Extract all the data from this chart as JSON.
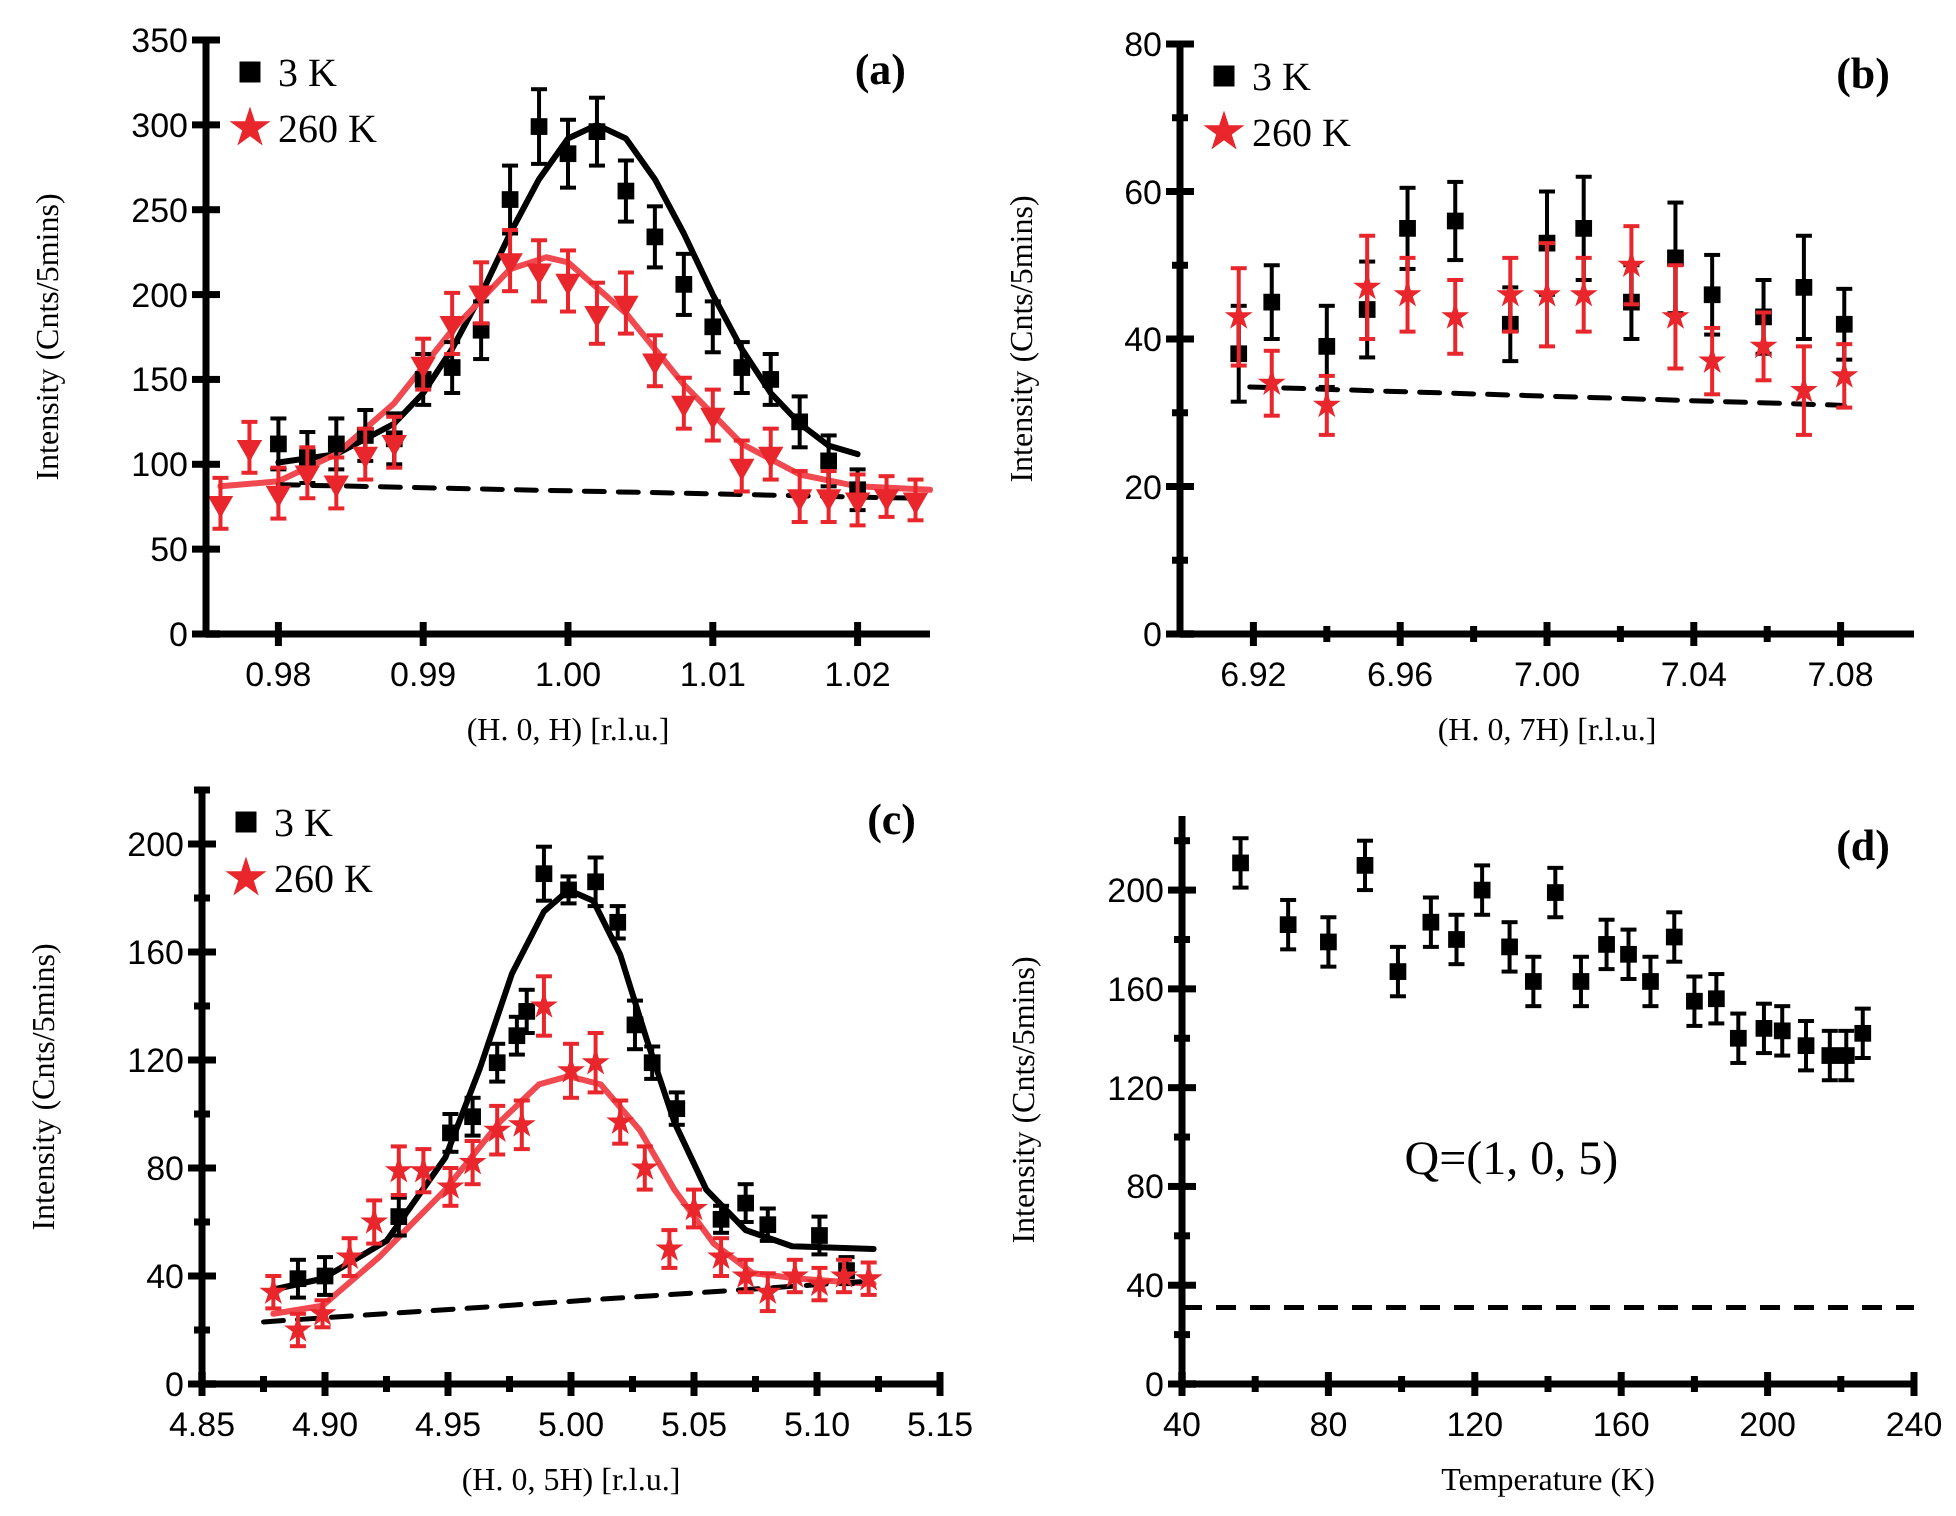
{
  "chart_data": [
    {
      "type": "scatter",
      "xlabel": "(H. 0, H) [r.l.u.]",
      "ylabel": "Intensity (Cnts/5mins)",
      "annotations": [
        "(a)"
      ],
      "legend": "top left",
      "xlim": [
        0.975,
        1.025
      ],
      "ylim": [
        0,
        350
      ],
      "xticks": [
        0.98,
        0.99,
        {
          "value": 1,
          "label": "1.00"
        },
        1.01,
        1.02
      ],
      "yticks": [
        0,
        50,
        100,
        150,
        200,
        250,
        300,
        350
      ],
      "series": [
        {
          "name": "3 K",
          "marker": "square",
          "color": "#000000",
          "x": [
            0.98,
            0.982,
            0.984,
            0.986,
            0.988,
            0.99,
            0.992,
            0.994,
            0.996,
            0.998,
            1.0,
            1.002,
            1.004,
            1.006,
            1.008,
            1.01,
            1.012,
            1.014,
            1.016,
            1.018,
            1.02
          ],
          "values": [
            112,
            104,
            112,
            117,
            115,
            150,
            157,
            179,
            256,
            299,
            283,
            296,
            261,
            234,
            206,
            181,
            157,
            150,
            125,
            102,
            85
          ],
          "errors": [
            15,
            15,
            15,
            15,
            15,
            15,
            15,
            17,
            20,
            22,
            20,
            20,
            18,
            18,
            18,
            15,
            15,
            15,
            15,
            15,
            12
          ]
        },
        {
          "name": "260 K",
          "marker": "triangle",
          "color": "#e8262b",
          "x": [
            0.976,
            0.978,
            0.98,
            0.982,
            0.984,
            0.986,
            0.988,
            0.99,
            0.992,
            0.994,
            0.996,
            0.998,
            1.0,
            1.002,
            1.004,
            1.006,
            1.008,
            1.01,
            1.012,
            1.014,
            1.016,
            1.018,
            1.02,
            1.022,
            1.024
          ],
          "values": [
            77,
            110,
            83,
            95,
            89,
            106,
            113,
            159,
            183,
            201,
            220,
            214,
            208,
            189,
            195,
            161,
            136,
            129,
            99,
            106,
            81,
            81,
            79,
            81,
            79
          ],
          "errors": [
            15,
            15,
            15,
            15,
            15,
            15,
            15,
            15,
            18,
            18,
            18,
            18,
            18,
            18,
            18,
            15,
            15,
            15,
            15,
            15,
            15,
            15,
            15,
            12,
            12
          ]
        },
        {
          "type": "line",
          "color": "#000000",
          "x": [
            0.98,
            0.984,
            0.988,
            0.99,
            0.992,
            0.994,
            0.996,
            0.998,
            1.0,
            1.002,
            1.004,
            1.006,
            1.008,
            1.01,
            1.012,
            1.014,
            1.016,
            1.018,
            1.02
          ],
          "values": [
            101,
            106,
            124,
            142,
            168,
            200,
            236,
            268,
            292,
            300,
            292,
            268,
            236,
            200,
            168,
            142,
            124,
            111,
            106
          ]
        },
        {
          "type": "line",
          "color": "#f0494f",
          "x": [
            0.976,
            0.98,
            0.984,
            0.988,
            0.992,
            0.996,
            0.9985,
            1.0,
            1.004,
            1.008,
            1.012,
            1.016,
            1.02,
            1.025
          ],
          "values": [
            87,
            90,
            106,
            136,
            179,
            215,
            222,
            219,
            189,
            147,
            112,
            94,
            87,
            85
          ]
        },
        {
          "type": "line",
          "line_style": "dashed",
          "color": "#000000",
          "x": [
            0.98,
            1.024
          ],
          "values": [
            88,
            80
          ]
        }
      ]
    },
    {
      "type": "scatter",
      "xlabel": "(H. 0, 7H) [r.l.u.]",
      "ylabel": "Intensity (Cnts/5mins)",
      "annotations": [
        "(b)"
      ],
      "legend": "top left",
      "xlim": [
        6.9,
        7.1
      ],
      "ylim": [
        0,
        80
      ],
      "xticks": [
        6.92,
        {
          "value": 6.94,
          "label": null
        },
        6.96,
        {
          "value": 6.98,
          "label": null
        },
        {
          "value": 7,
          "label": "7.00"
        },
        {
          "value": 7.02,
          "label": null
        },
        7.04,
        {
          "value": 7.06,
          "label": null
        },
        7.08
      ],
      "yticks": [
        0,
        {
          "value": 10,
          "label": null
        },
        20,
        {
          "value": 30,
          "label": null
        },
        40,
        {
          "value": 50,
          "label": null
        },
        60,
        {
          "value": 70,
          "label": null
        },
        80
      ],
      "series": [
        {
          "name": "3 K",
          "marker": "square",
          "color": "#000000",
          "x": [
            6.916,
            6.925,
            6.94,
            6.951,
            6.962,
            6.975,
            6.99,
            7.0,
            7.01,
            7.023,
            7.035,
            7.045,
            7.059,
            7.07,
            7.081
          ],
          "values": [
            38,
            45,
            39,
            44,
            55,
            56,
            42,
            53,
            55,
            45,
            51,
            46,
            43,
            47,
            42
          ],
          "errors": [
            6.5,
            5,
            5.5,
            6.5,
            5.5,
            5.3,
            5,
            7,
            7,
            5,
            7.5,
            5.4,
            5,
            7,
            4.8
          ]
        },
        {
          "name": "260 K",
          "marker": "star",
          "color": "#e8262b",
          "x": [
            6.916,
            6.925,
            6.94,
            6.951,
            6.962,
            6.975,
            6.99,
            7.0,
            7.01,
            7.023,
            7.035,
            7.045,
            7.059,
            7.07,
            7.081
          ],
          "values": [
            43,
            34,
            31,
            47,
            46,
            43,
            46,
            46,
            46,
            50,
            43,
            37,
            39,
            33,
            35
          ],
          "errors": [
            6.6,
            4.4,
            4,
            7,
            5,
            5,
            5,
            7,
            5,
            5.3,
            7,
            4.5,
            4.6,
            6,
            4.3
          ]
        },
        {
          "type": "line",
          "line_style": "dashed",
          "color": "#000000",
          "x": [
            6.919,
            7.081
          ],
          "values": [
            33.5,
            31
          ]
        }
      ]
    },
    {
      "type": "scatter",
      "xlabel": "(H. 0, 5H) [r.l.u.]",
      "ylabel": "Intensity (Cnts/5mins)",
      "annotations": [
        "(c)"
      ],
      "legend": "top left",
      "xlim": [
        4.85,
        5.15
      ],
      "ylim": [
        0,
        220
      ],
      "xticks": [
        4.85,
        {
          "value": 4.875,
          "label": null
        },
        {
          "value": 4.9,
          "label": "4.90"
        },
        {
          "value": 4.925,
          "label": null
        },
        4.95,
        {
          "value": 4.975,
          "label": null
        },
        {
          "value": 5,
          "label": "5.00"
        },
        {
          "value": 5.025,
          "label": null
        },
        5.05,
        {
          "value": 5.075,
          "label": null
        },
        {
          "value": 5.1,
          "label": "5.10"
        },
        {
          "value": 5.125,
          "label": null
        },
        5.15
      ],
      "yticks": [
        0,
        {
          "value": 20,
          "label": null
        },
        40,
        {
          "value": 60,
          "label": null
        },
        80,
        {
          "value": 100,
          "label": null
        },
        120,
        {
          "value": 140,
          "label": null
        },
        160,
        {
          "value": 180,
          "label": null
        },
        200,
        {
          "value": 220,
          "label": null
        }
      ],
      "series": [
        {
          "name": "3 K",
          "marker": "square",
          "color": "#000000",
          "x": [
            4.889,
            4.9,
            4.93,
            4.951,
            4.96,
            4.97,
            4.978,
            4.982,
            4.989,
            4.999,
            5.01,
            5.019,
            5.026,
            5.033,
            5.043,
            5.061,
            5.071,
            5.08,
            5.101,
            5.112
          ],
          "values": [
            39,
            40,
            62,
            93,
            99,
            119,
            129,
            138,
            189,
            183,
            186,
            171,
            133,
            119,
            102,
            61,
            67,
            59,
            55,
            42
          ],
          "errors": [
            7,
            7,
            7,
            7,
            7,
            7,
            7,
            8,
            10,
            5,
            9,
            6,
            9,
            6,
            6,
            5,
            7,
            6,
            7,
            5
          ]
        },
        {
          "name": "260 K",
          "marker": "star",
          "color": "#e8262b",
          "x": [
            4.879,
            4.889,
            4.899,
            4.91,
            4.92,
            4.93,
            4.94,
            4.951,
            4.96,
            4.97,
            4.98,
            4.989,
            5.0,
            5.01,
            5.02,
            5.03,
            5.04,
            5.05,
            5.061,
            5.071,
            5.08,
            5.091,
            5.101,
            5.111,
            5.121
          ],
          "values": [
            34,
            20,
            26,
            47,
            60,
            79,
            79,
            73,
            82,
            94,
            96,
            140,
            116,
            119,
            97,
            80,
            50,
            65,
            47,
            40,
            34,
            40,
            37,
            40,
            39
          ],
          "errors": [
            6,
            6,
            5,
            7,
            8,
            9,
            8,
            7,
            8,
            9,
            9,
            11,
            10,
            11,
            8,
            8,
            7,
            7,
            7,
            6,
            7,
            6,
            6,
            6,
            6
          ]
        },
        {
          "type": "line",
          "color": "#000000",
          "x": [
            4.879,
            4.899,
            4.925,
            4.949,
            4.963,
            4.976,
            4.989,
            4.999,
            5.009,
            5.02,
            5.031,
            5.042,
            5.055,
            5.071,
            5.09,
            5.123
          ],
          "values": [
            35,
            39,
            53,
            84,
            117,
            152,
            175,
            183,
            179,
            159,
            127,
            97,
            72,
            57,
            51,
            50
          ]
        },
        {
          "type": "line",
          "color": "#f0494f",
          "x": [
            4.879,
            4.899,
            4.922,
            4.949,
            4.971,
            4.987,
            4.999,
            5.012,
            5.028,
            5.042,
            5.058,
            5.074,
            5.093,
            5.123
          ],
          "values": [
            26,
            29,
            47,
            72,
            97,
            111,
            114,
            111,
            94,
            72,
            52,
            41,
            39,
            37
          ]
        },
        {
          "type": "line",
          "line_style": "dashed",
          "color": "#000000",
          "x": [
            4.875,
            5.12
          ],
          "values": [
            23,
            38
          ]
        }
      ]
    },
    {
      "type": "scatter",
      "xlabel": "Temperature (K)",
      "ylabel": "Intensity (Cnts/5mins)",
      "annotations": [
        "(d)",
        "Q=(1, 0, 5)"
      ],
      "xlim": [
        40,
        240
      ],
      "ylim": [
        0,
        230
      ],
      "xticks": [
        40,
        {
          "value": 60,
          "label": null
        },
        80,
        {
          "value": 100,
          "label": null
        },
        120,
        {
          "value": 140,
          "label": null
        },
        160,
        {
          "value": 180,
          "label": null
        },
        200,
        {
          "value": 220,
          "label": null
        },
        240
      ],
      "yticks": [
        0,
        {
          "value": 20,
          "label": null
        },
        40,
        {
          "value": 60,
          "label": null
        },
        80,
        {
          "value": 100,
          "label": null
        },
        120,
        {
          "value": 140,
          "label": null
        },
        160,
        {
          "value": 180,
          "label": null
        },
        200,
        {
          "value": 220,
          "label": null
        }
      ],
      "ref_lines": [
        {
          "axis": "y",
          "value": 31,
          "color": "#000000",
          "line_style": "dashed"
        }
      ],
      "series": [
        {
          "marker": "square",
          "color": "#000000",
          "x": [
            56,
            69,
            80,
            90,
            99,
            108,
            115,
            122,
            129.5,
            136,
            142,
            149,
            156,
            162,
            168,
            174.5,
            180,
            186,
            192,
            199,
            204,
            210.5,
            217,
            221.5,
            226
          ],
          "values": [
            211,
            186,
            179,
            210,
            167,
            187,
            180,
            200,
            177,
            163,
            199,
            163,
            178,
            174,
            163,
            181,
            155,
            156,
            140,
            144,
            143,
            137,
            133,
            133,
            142
          ],
          "errors": [
            10,
            10,
            10,
            10,
            10,
            10,
            10,
            10,
            10,
            10,
            10,
            10,
            10,
            10,
            10,
            10,
            10,
            10,
            10,
            10,
            10,
            10,
            10,
            10,
            10
          ]
        }
      ]
    }
  ]
}
